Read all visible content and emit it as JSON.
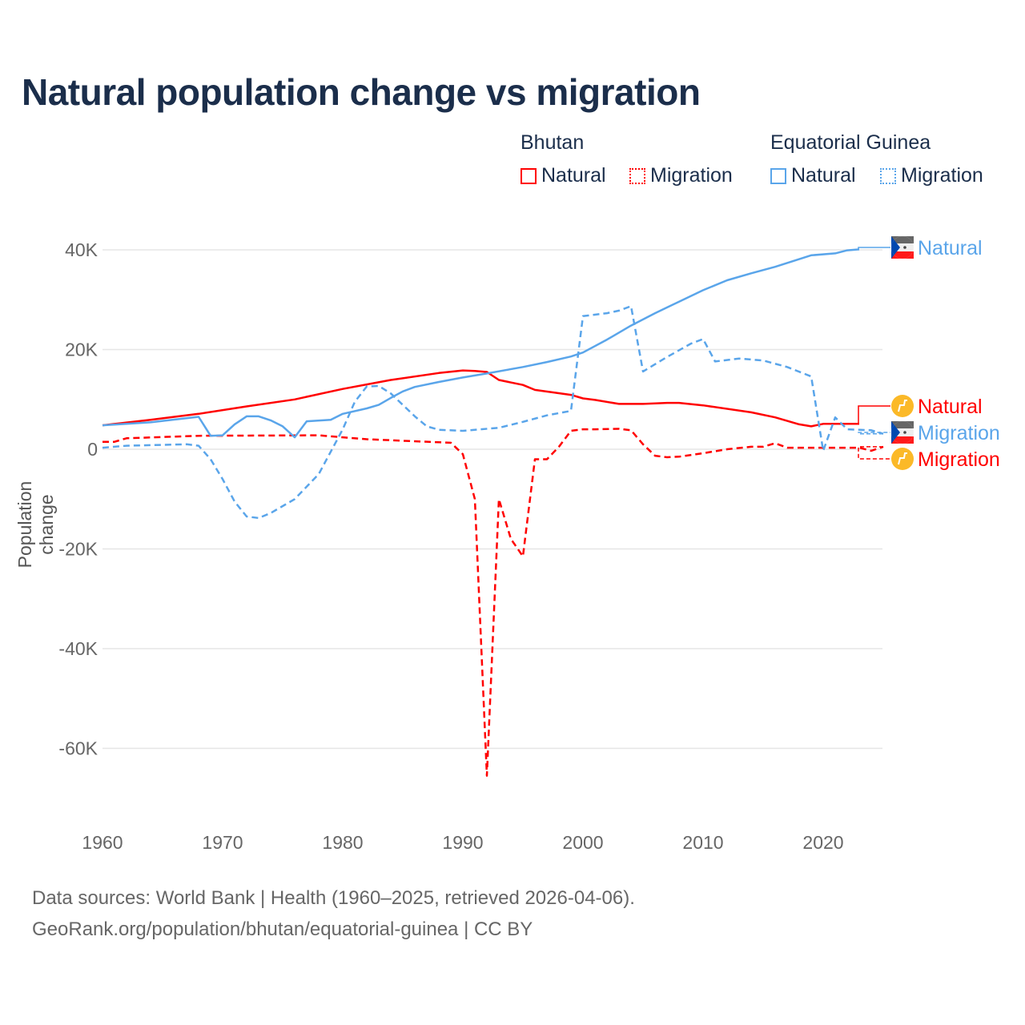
{
  "chart_data": {
    "type": "line",
    "title": "Natural population change vs migration",
    "xlabel": "",
    "ylabel": "Population change",
    "xlim": [
      1960,
      2025
    ],
    "ylim": [
      -70000,
      45000
    ],
    "x_ticks": [
      1960,
      1970,
      1980,
      1990,
      2000,
      2010,
      2020
    ],
    "x_tick_labels": [
      "1960",
      "1970",
      "1980",
      "1990",
      "2000",
      "2010",
      "2020"
    ],
    "y_ticks": [
      40000,
      20000,
      0,
      -20000,
      -40000,
      -60000
    ],
    "y_tick_labels": [
      "40K",
      "20K",
      "0",
      "-20K",
      "-40K",
      "-60K"
    ],
    "grid": true,
    "legend": {
      "placement": "top-right",
      "groups": [
        {
          "country": "Bhutan",
          "items": [
            "Natural",
            "Migration"
          ]
        },
        {
          "country": "Equatorial Guinea",
          "items": [
            "Natural",
            "Migration"
          ]
        }
      ]
    },
    "series": [
      {
        "name": "Bhutan Natural",
        "country": "Bhutan",
        "kind": "Natural",
        "color": "#ff0000",
        "dash": false,
        "end_label": "Natural",
        "icon": "bhutan-flag-icon",
        "points": [
          [
            1960,
            4800
          ],
          [
            1964,
            5900
          ],
          [
            1968,
            7100
          ],
          [
            1972,
            8600
          ],
          [
            1976,
            10000
          ],
          [
            1980,
            12100
          ],
          [
            1984,
            13900
          ],
          [
            1988,
            15300
          ],
          [
            1990,
            15800
          ],
          [
            1991,
            15700
          ],
          [
            1992,
            15500
          ],
          [
            1993,
            13900
          ],
          [
            1995,
            12900
          ],
          [
            1996,
            11900
          ],
          [
            1999,
            10900
          ],
          [
            2000,
            10200
          ],
          [
            2001,
            9900
          ],
          [
            2003,
            9100
          ],
          [
            2005,
            9100
          ],
          [
            2007,
            9300
          ],
          [
            2008,
            9300
          ],
          [
            2010,
            8800
          ],
          [
            2014,
            7400
          ],
          [
            2016,
            6400
          ],
          [
            2018,
            5000
          ],
          [
            2019,
            4600
          ],
          [
            2020,
            5100
          ],
          [
            2023,
            5100
          ]
        ]
      },
      {
        "name": "Bhutan Migration",
        "country": "Bhutan",
        "kind": "Migration",
        "color": "#ff0000",
        "dash": true,
        "end_label": "Migration",
        "icon": "bhutan-flag-icon",
        "points": [
          [
            1960,
            1500
          ],
          [
            1961,
            1500
          ],
          [
            1962,
            2200
          ],
          [
            1968,
            2700
          ],
          [
            1978,
            2800
          ],
          [
            1980,
            2400
          ],
          [
            1982,
            2000
          ],
          [
            1988,
            1400
          ],
          [
            1989,
            1300
          ],
          [
            1990,
            -1000
          ],
          [
            1991,
            -10000
          ],
          [
            1992,
            -65500
          ],
          [
            1993,
            -10000
          ],
          [
            1994,
            -18000
          ],
          [
            1995,
            -21500
          ],
          [
            1996,
            -2000
          ],
          [
            1997,
            -2000
          ],
          [
            1998,
            500
          ],
          [
            1999,
            3700
          ],
          [
            2000,
            4000
          ],
          [
            2001,
            4000
          ],
          [
            2003,
            4100
          ],
          [
            2004,
            3800
          ],
          [
            2005,
            1000
          ],
          [
            2006,
            -1300
          ],
          [
            2007,
            -1600
          ],
          [
            2008,
            -1500
          ],
          [
            2010,
            -800
          ],
          [
            2012,
            0
          ],
          [
            2014,
            500
          ],
          [
            2015,
            500
          ],
          [
            2016,
            1200
          ],
          [
            2017,
            300
          ],
          [
            2023,
            300
          ],
          [
            2024,
            -300
          ],
          [
            2025,
            500
          ]
        ]
      },
      {
        "name": "Equatorial Guinea Natural",
        "country": "Equatorial Guinea",
        "kind": "Natural",
        "color": "#5aa5ea",
        "dash": false,
        "end_label": "Natural",
        "icon": "equatorial-guinea-flag-icon",
        "points": [
          [
            1960,
            4800
          ],
          [
            1964,
            5400
          ],
          [
            1968,
            6500
          ],
          [
            1969,
            2700
          ],
          [
            1970,
            2800
          ],
          [
            1971,
            5000
          ],
          [
            1972,
            6600
          ],
          [
            1973,
            6600
          ],
          [
            1974,
            5800
          ],
          [
            1975,
            4600
          ],
          [
            1976,
            2400
          ],
          [
            1977,
            5600
          ],
          [
            1979,
            5900
          ],
          [
            1980,
            7100
          ],
          [
            1982,
            8200
          ],
          [
            1983,
            8900
          ],
          [
            1984,
            10300
          ],
          [
            1985,
            11600
          ],
          [
            1986,
            12500
          ],
          [
            1988,
            13500
          ],
          [
            1990,
            14400
          ],
          [
            1992,
            15200
          ],
          [
            1995,
            16500
          ],
          [
            1997,
            17500
          ],
          [
            1999,
            18600
          ],
          [
            2000,
            19400
          ],
          [
            2002,
            22000
          ],
          [
            2004,
            24800
          ],
          [
            2006,
            27300
          ],
          [
            2008,
            29600
          ],
          [
            2010,
            31900
          ],
          [
            2012,
            33900
          ],
          [
            2014,
            35300
          ],
          [
            2016,
            36600
          ],
          [
            2019,
            38900
          ],
          [
            2021,
            39300
          ],
          [
            2022,
            39900
          ],
          [
            2023,
            40100
          ]
        ]
      },
      {
        "name": "Equatorial Guinea Migration",
        "country": "Equatorial Guinea",
        "kind": "Migration",
        "color": "#5aa5ea",
        "dash": true,
        "end_label": "Migration",
        "icon": "equatorial-guinea-flag-icon",
        "points": [
          [
            1960,
            300
          ],
          [
            1962,
            700
          ],
          [
            1967,
            1000
          ],
          [
            1968,
            700
          ],
          [
            1969,
            -2000
          ],
          [
            1970,
            -6000
          ],
          [
            1971,
            -10500
          ],
          [
            1972,
            -13500
          ],
          [
            1973,
            -13800
          ],
          [
            1974,
            -12800
          ],
          [
            1976,
            -10000
          ],
          [
            1978,
            -5000
          ],
          [
            1980,
            4000
          ],
          [
            1981,
            9500
          ],
          [
            1982,
            12600
          ],
          [
            1983,
            12700
          ],
          [
            1984,
            11200
          ],
          [
            1986,
            6600
          ],
          [
            1987,
            4600
          ],
          [
            1988,
            3900
          ],
          [
            1990,
            3700
          ],
          [
            1993,
            4300
          ],
          [
            1995,
            5500
          ],
          [
            1997,
            6800
          ],
          [
            1999,
            7700
          ],
          [
            2000,
            26700
          ],
          [
            2002,
            27300
          ],
          [
            2003,
            27800
          ],
          [
            2004,
            28700
          ],
          [
            2005,
            15600
          ],
          [
            2007,
            18500
          ],
          [
            2009,
            21200
          ],
          [
            2010,
            22100
          ],
          [
            2011,
            17600
          ],
          [
            2013,
            18200
          ],
          [
            2015,
            17800
          ],
          [
            2017,
            16500
          ],
          [
            2019,
            14600
          ],
          [
            2020,
            -300
          ],
          [
            2021,
            6400
          ],
          [
            2022,
            4000
          ],
          [
            2024,
            3800
          ],
          [
            2025,
            3100
          ]
        ]
      }
    ]
  },
  "legend": {
    "bhutan": "Bhutan",
    "equatorial_guinea": "Equatorial Guinea",
    "natural": "Natural",
    "migration": "Migration",
    "colors": {
      "bhutan": "#ff0000",
      "equatorial_guinea": "#5aa5ea"
    }
  },
  "footer": {
    "sources": "Data sources: World Bank | Health (1960–2025, retrieved 2026-04-06).",
    "link": "GeoRank.org/population/bhutan/equatorial-guinea | CC BY"
  }
}
